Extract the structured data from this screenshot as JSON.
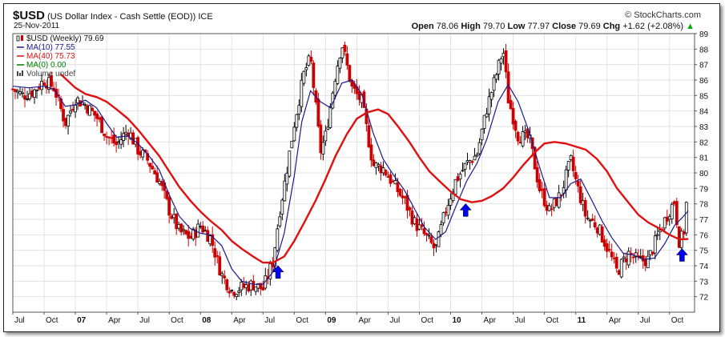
{
  "header": {
    "symbol": "$USD",
    "description": "(US Dollar Index - Cash Settle (EOD))",
    "exchange": "ICE",
    "date": "25-Nov-2011",
    "watermark": "© StockCharts.com",
    "open_label": "Open",
    "open": "78.06",
    "high_label": "High",
    "high": "79.70",
    "low_label": "Low",
    "low": "77.97",
    "close_label": "Close",
    "close": "79.69",
    "chg_label": "Chg",
    "chg": "+1.62 (+2.08%)",
    "chg_arrow": "▲"
  },
  "legend": [
    {
      "label": "$USD (Weekly) 79.69",
      "color": "#000000",
      "icon": "candlestick-icon"
    },
    {
      "label": "MA(10) 77.55",
      "color": "#1a1a8c",
      "icon": "line-swatch-icon"
    },
    {
      "label": "MA(40) 75.73",
      "color": "#e01010",
      "icon": "line-swatch-icon"
    },
    {
      "label": "MA(0) 0.00",
      "color": "#008000",
      "icon": "line-swatch-icon"
    },
    {
      "label": "Volume undef",
      "color": "#444444",
      "icon": "volume-bars-icon"
    }
  ],
  "chart_data": {
    "type": "candlestick",
    "frequency": "weekly",
    "ylim": [
      71,
      89
    ],
    "yticks": [
      72,
      73,
      74,
      75,
      76,
      77,
      78,
      79,
      80,
      81,
      82,
      83,
      84,
      85,
      86,
      87,
      88,
      89
    ],
    "xlim": [
      2006.5,
      2011.95
    ],
    "xticks": [
      {
        "label": "Jul",
        "x": 2006.5
      },
      {
        "label": "Oct",
        "x": 2006.75
      },
      {
        "label": "07",
        "x": 2007.0
      },
      {
        "label": "Apr",
        "x": 2007.25
      },
      {
        "label": "Jul",
        "x": 2007.5
      },
      {
        "label": "Oct",
        "x": 2007.75
      },
      {
        "label": "08",
        "x": 2008.0
      },
      {
        "label": "Apr",
        "x": 2008.25
      },
      {
        "label": "Jul",
        "x": 2008.5
      },
      {
        "label": "Oct",
        "x": 2008.75
      },
      {
        "label": "09",
        "x": 2009.0
      },
      {
        "label": "Apr",
        "x": 2009.25
      },
      {
        "label": "Jul",
        "x": 2009.5
      },
      {
        "label": "Oct",
        "x": 2009.75
      },
      {
        "label": "10",
        "x": 2010.0
      },
      {
        "label": "Apr",
        "x": 2010.25
      },
      {
        "label": "Jul",
        "x": 2010.5
      },
      {
        "label": "Oct",
        "x": 2010.75
      },
      {
        "label": "11",
        "x": 2011.0
      },
      {
        "label": "Apr",
        "x": 2011.25
      },
      {
        "label": "Jul",
        "x": 2011.5
      },
      {
        "label": "Oct",
        "x": 2011.75
      }
    ],
    "close_anchors": [
      [
        2006.5,
        85.4
      ],
      [
        2006.58,
        85.0
      ],
      [
        2006.67,
        85.3
      ],
      [
        2006.75,
        86.0
      ],
      [
        2006.83,
        85.5
      ],
      [
        2006.92,
        83.2
      ],
      [
        2007.0,
        84.8
      ],
      [
        2007.08,
        84.4
      ],
      [
        2007.17,
        83.6
      ],
      [
        2007.25,
        82.4
      ],
      [
        2007.33,
        81.8
      ],
      [
        2007.42,
        82.8
      ],
      [
        2007.5,
        81.5
      ],
      [
        2007.58,
        80.8
      ],
      [
        2007.67,
        79.5
      ],
      [
        2007.75,
        77.6
      ],
      [
        2007.83,
        76.2
      ],
      [
        2007.92,
        75.8
      ],
      [
        2008.0,
        76.6
      ],
      [
        2008.08,
        75.8
      ],
      [
        2008.17,
        73.4
      ],
      [
        2008.25,
        72.4
      ],
      [
        2008.33,
        72.6
      ],
      [
        2008.42,
        72.8
      ],
      [
        2008.5,
        72.5
      ],
      [
        2008.58,
        74.3
      ],
      [
        2008.63,
        77.4
      ],
      [
        2008.67,
        79.2
      ],
      [
        2008.75,
        83.2
      ],
      [
        2008.83,
        86.5
      ],
      [
        2008.88,
        87.4
      ],
      [
        2008.92,
        84.4
      ],
      [
        2008.96,
        81.4
      ],
      [
        2009.0,
        82.4
      ],
      [
        2009.08,
        86.4
      ],
      [
        2009.13,
        88.4
      ],
      [
        2009.21,
        85.5
      ],
      [
        2009.29,
        84.6
      ],
      [
        2009.38,
        80.5
      ],
      [
        2009.46,
        80.3
      ],
      [
        2009.54,
        79.3
      ],
      [
        2009.63,
        78.2
      ],
      [
        2009.71,
        76.8
      ],
      [
        2009.79,
        76.0
      ],
      [
        2009.88,
        75.0
      ],
      [
        2009.96,
        77.6
      ],
      [
        2010.04,
        79.5
      ],
      [
        2010.13,
        80.6
      ],
      [
        2010.21,
        81.2
      ],
      [
        2010.29,
        84.2
      ],
      [
        2010.38,
        86.8
      ],
      [
        2010.42,
        88.0
      ],
      [
        2010.46,
        84.8
      ],
      [
        2010.54,
        82.4
      ],
      [
        2010.63,
        82.2
      ],
      [
        2010.71,
        79.0
      ],
      [
        2010.79,
        77.5
      ],
      [
        2010.88,
        78.6
      ],
      [
        2010.96,
        80.8
      ],
      [
        2011.0,
        79.5
      ],
      [
        2011.08,
        77.2
      ],
      [
        2011.17,
        76.6
      ],
      [
        2011.25,
        75.2
      ],
      [
        2011.33,
        73.6
      ],
      [
        2011.42,
        74.8
      ],
      [
        2011.5,
        74.3
      ],
      [
        2011.58,
        74.4
      ],
      [
        2011.67,
        76.2
      ],
      [
        2011.75,
        77.6
      ],
      [
        2011.79,
        78.2
      ],
      [
        2011.83,
        75.4
      ],
      [
        2011.87,
        76.4
      ],
      [
        2011.9,
        79.69
      ]
    ],
    "series": [
      {
        "name": "MA(10)",
        "color": "#1a1a8c",
        "points": [
          [
            2006.5,
            85.6
          ],
          [
            2006.63,
            85.5
          ],
          [
            2006.75,
            85.6
          ],
          [
            2006.83,
            85.4
          ],
          [
            2006.92,
            84.3
          ],
          [
            2007.0,
            84.4
          ],
          [
            2007.08,
            84.7
          ],
          [
            2007.17,
            84.2
          ],
          [
            2007.25,
            83.2
          ],
          [
            2007.33,
            82.3
          ],
          [
            2007.42,
            82.4
          ],
          [
            2007.5,
            81.9
          ],
          [
            2007.58,
            81.2
          ],
          [
            2007.67,
            80.2
          ],
          [
            2007.75,
            78.6
          ],
          [
            2007.83,
            77.2
          ],
          [
            2007.92,
            76.4
          ],
          [
            2008.0,
            76.1
          ],
          [
            2008.08,
            76.0
          ],
          [
            2008.17,
            75.3
          ],
          [
            2008.25,
            73.8
          ],
          [
            2008.33,
            73.0
          ],
          [
            2008.42,
            72.8
          ],
          [
            2008.5,
            72.8
          ],
          [
            2008.58,
            73.6
          ],
          [
            2008.67,
            76.1
          ],
          [
            2008.75,
            79.8
          ],
          [
            2008.81,
            83.3
          ],
          [
            2008.88,
            85.3
          ],
          [
            2008.96,
            84.6
          ],
          [
            2009.04,
            84.2
          ],
          [
            2009.13,
            85.8
          ],
          [
            2009.21,
            86.0
          ],
          [
            2009.29,
            85.1
          ],
          [
            2009.38,
            82.6
          ],
          [
            2009.46,
            80.9
          ],
          [
            2009.54,
            79.9
          ],
          [
            2009.63,
            78.9
          ],
          [
            2009.71,
            77.7
          ],
          [
            2009.79,
            76.5
          ],
          [
            2009.88,
            75.7
          ],
          [
            2009.96,
            76.2
          ],
          [
            2010.04,
            77.8
          ],
          [
            2010.13,
            79.5
          ],
          [
            2010.21,
            80.6
          ],
          [
            2010.29,
            82.2
          ],
          [
            2010.38,
            84.6
          ],
          [
            2010.46,
            85.7
          ],
          [
            2010.54,
            84.6
          ],
          [
            2010.63,
            82.6
          ],
          [
            2010.71,
            80.4
          ],
          [
            2010.79,
            78.4
          ],
          [
            2010.88,
            78.4
          ],
          [
            2010.96,
            79.3
          ],
          [
            2011.04,
            79.6
          ],
          [
            2011.13,
            78.2
          ],
          [
            2011.21,
            76.9
          ],
          [
            2011.29,
            75.8
          ],
          [
            2011.38,
            74.8
          ],
          [
            2011.46,
            74.7
          ],
          [
            2011.54,
            74.4
          ],
          [
            2011.63,
            74.5
          ],
          [
            2011.71,
            75.4
          ],
          [
            2011.79,
            76.6
          ],
          [
            2011.85,
            77.1
          ],
          [
            2011.9,
            77.55
          ]
        ]
      },
      {
        "name": "MA(40)",
        "color": "#e01010",
        "points": [
          [
            2006.88,
            86.4
          ],
          [
            2007.0,
            85.5
          ],
          [
            2007.08,
            85.1
          ],
          [
            2007.17,
            84.9
          ],
          [
            2007.25,
            84.6
          ],
          [
            2007.33,
            84.1
          ],
          [
            2007.42,
            83.5
          ],
          [
            2007.5,
            82.8
          ],
          [
            2007.58,
            82.0
          ],
          [
            2007.67,
            81.1
          ],
          [
            2007.75,
            80.1
          ],
          [
            2007.83,
            79.1
          ],
          [
            2007.92,
            78.2
          ],
          [
            2008.0,
            77.5
          ],
          [
            2008.08,
            76.9
          ],
          [
            2008.17,
            76.3
          ],
          [
            2008.25,
            75.6
          ],
          [
            2008.33,
            75.1
          ],
          [
            2008.42,
            74.6
          ],
          [
            2008.5,
            74.2
          ],
          [
            2008.58,
            74.2
          ],
          [
            2008.67,
            74.6
          ],
          [
            2008.75,
            75.6
          ],
          [
            2008.83,
            76.8
          ],
          [
            2008.92,
            78.2
          ],
          [
            2009.0,
            79.6
          ],
          [
            2009.08,
            81.1
          ],
          [
            2009.17,
            82.5
          ],
          [
            2009.25,
            83.5
          ],
          [
            2009.33,
            83.9
          ],
          [
            2009.42,
            84.1
          ],
          [
            2009.5,
            83.8
          ],
          [
            2009.58,
            83.0
          ],
          [
            2009.67,
            82.0
          ],
          [
            2009.75,
            81.0
          ],
          [
            2009.83,
            80.1
          ],
          [
            2009.92,
            79.4
          ],
          [
            2010.0,
            78.8
          ],
          [
            2010.08,
            78.3
          ],
          [
            2010.17,
            78.1
          ],
          [
            2010.25,
            78.2
          ],
          [
            2010.33,
            78.5
          ],
          [
            2010.42,
            79.0
          ],
          [
            2010.5,
            79.7
          ],
          [
            2010.58,
            80.5
          ],
          [
            2010.67,
            81.3
          ],
          [
            2010.75,
            81.9
          ],
          [
            2010.83,
            82.0
          ],
          [
            2010.92,
            81.9
          ],
          [
            2011.0,
            81.7
          ],
          [
            2011.08,
            81.5
          ],
          [
            2011.17,
            80.9
          ],
          [
            2011.25,
            80.1
          ],
          [
            2011.33,
            79.0
          ],
          [
            2011.42,
            78.1
          ],
          [
            2011.5,
            77.3
          ],
          [
            2011.58,
            76.8
          ],
          [
            2011.67,
            76.4
          ],
          [
            2011.75,
            76.0
          ],
          [
            2011.83,
            75.7
          ],
          [
            2011.9,
            75.73
          ]
        ]
      }
    ],
    "annotations": [
      {
        "type": "up-arrow",
        "x": 2008.62,
        "y": 73.6,
        "color": "#0000ee"
      },
      {
        "type": "up-arrow",
        "x": 2010.12,
        "y": 77.6,
        "color": "#0000ee"
      },
      {
        "type": "up-arrow",
        "x": 2011.85,
        "y": 74.7,
        "color": "#0000ee"
      }
    ],
    "grid": true,
    "legend_position": "top-left"
  }
}
